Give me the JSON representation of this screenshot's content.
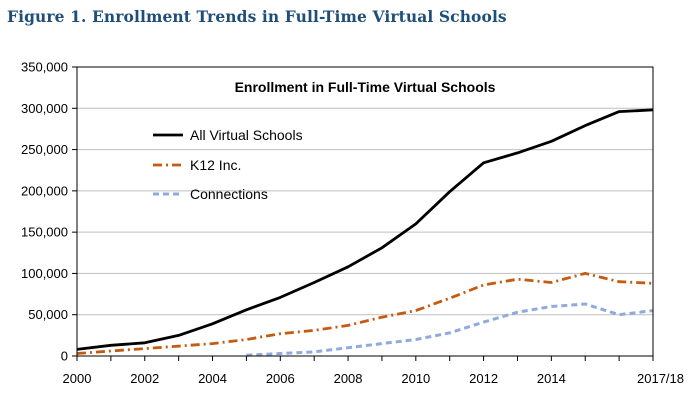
{
  "figure": {
    "caption": "Figure 1. Enrollment Trends in Full-Time Virtual Schools"
  },
  "chart_data": {
    "type": "line",
    "title": "Enrollment in Full-Time Virtual Schools",
    "xlabel": "",
    "ylabel": "",
    "x": [
      "2000",
      "2001",
      "2002",
      "2003",
      "2004",
      "2005",
      "2006",
      "2007",
      "2008",
      "2009",
      "2010",
      "2011",
      "2012",
      "2013",
      "2014",
      "2015",
      "2016",
      "2017/18"
    ],
    "x_tick_labels": [
      "2000",
      "2002",
      "2004",
      "2006",
      "2008",
      "2010",
      "2012",
      "2014",
      "2017/18"
    ],
    "ylim": [
      0,
      350000
    ],
    "y_ticks": [
      0,
      50000,
      100000,
      150000,
      200000,
      250000,
      300000,
      350000
    ],
    "y_tick_labels": [
      "0",
      "50,000",
      "100,000",
      "150,000",
      "200,000",
      "250,000",
      "300,000",
      "350,000"
    ],
    "grid": "horizontal",
    "legend_position": "top-left",
    "series": [
      {
        "name": "All Virtual Schools",
        "color": "#000000",
        "line_style": "solid",
        "values": [
          8000,
          13000,
          16000,
          25000,
          39000,
          56000,
          71000,
          89000,
          108000,
          131000,
          160000,
          199000,
          234000,
          246000,
          260000,
          279000,
          296000,
          298000
        ]
      },
      {
        "name": "K12 Inc.",
        "color": "#c55a11",
        "line_style": "dash-dot",
        "values": [
          3000,
          6000,
          9000,
          12000,
          15000,
          20000,
          27000,
          31000,
          37000,
          47000,
          55000,
          70000,
          86000,
          93000,
          89000,
          100000,
          90000,
          88000
        ]
      },
      {
        "name": "Connections",
        "color": "#8faadc",
        "line_style": "dashed",
        "values": [
          null,
          null,
          null,
          null,
          null,
          1000,
          3000,
          5000,
          10000,
          15000,
          20000,
          28000,
          41000,
          53000,
          60000,
          63000,
          50000,
          55000
        ]
      }
    ]
  }
}
